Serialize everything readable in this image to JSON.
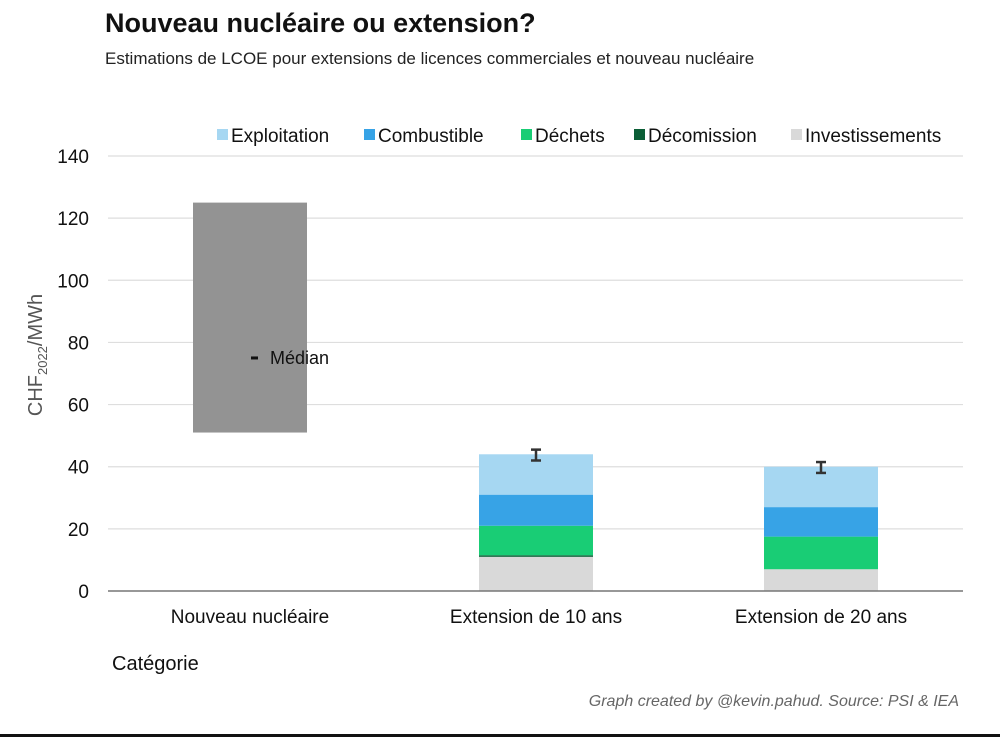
{
  "title": "Nouveau nucléaire ou extension?",
  "subtitle": "Estimations de LCOE pour extensions de licences commerciales et nouveau nucléaire",
  "credit": "Graph created by @kevin.pahud. Source: PSI & IEA",
  "chart_data": {
    "type": "bar",
    "stacked": true,
    "categories": [
      "Nouveau nucléaire",
      "Extension de 10 ans",
      "Extension de 20 ans"
    ],
    "xlabel": "Catégorie",
    "ylabel": "CHF2022/MWh",
    "ylabel_main": "CHF",
    "ylabel_sub": "2022",
    "ylabel_suffix": "/MWh",
    "ylim": [
      0,
      140
    ],
    "yticks": [
      0,
      20,
      40,
      60,
      80,
      100,
      120,
      140
    ],
    "grid": true,
    "legend_position": "top-right",
    "series": [
      {
        "name": "Investissements",
        "color": "#d9d9d9",
        "values": [
          0,
          11,
          7
        ]
      },
      {
        "name": "Décomission",
        "color": "#0b5e36",
        "values": [
          0,
          0.5,
          0
        ]
      },
      {
        "name": "Déchets",
        "color": "#19cd75",
        "values": [
          0,
          9.5,
          10.5
        ]
      },
      {
        "name": "Combustible",
        "color": "#37a3e6",
        "values": [
          0,
          10,
          9.5
        ]
      },
      {
        "name": "Exploitation",
        "color": "#a6d7f2",
        "values": [
          0,
          13,
          13
        ]
      }
    ],
    "legend_order": [
      "Exploitation",
      "Combustible",
      "Déchets",
      "Décomission",
      "Investissements"
    ],
    "range_bar": {
      "category": "Nouveau nucléaire",
      "low": 51,
      "high": 125,
      "color": "#939393"
    },
    "median": {
      "category": "Nouveau nucléaire",
      "value": 75,
      "label": "Médian"
    },
    "error_bars": [
      {
        "category": "Extension de 10 ans",
        "low": 42,
        "high": 45.5
      },
      {
        "category": "Extension de 20 ans",
        "low": 38,
        "high": 41.5
      }
    ]
  }
}
